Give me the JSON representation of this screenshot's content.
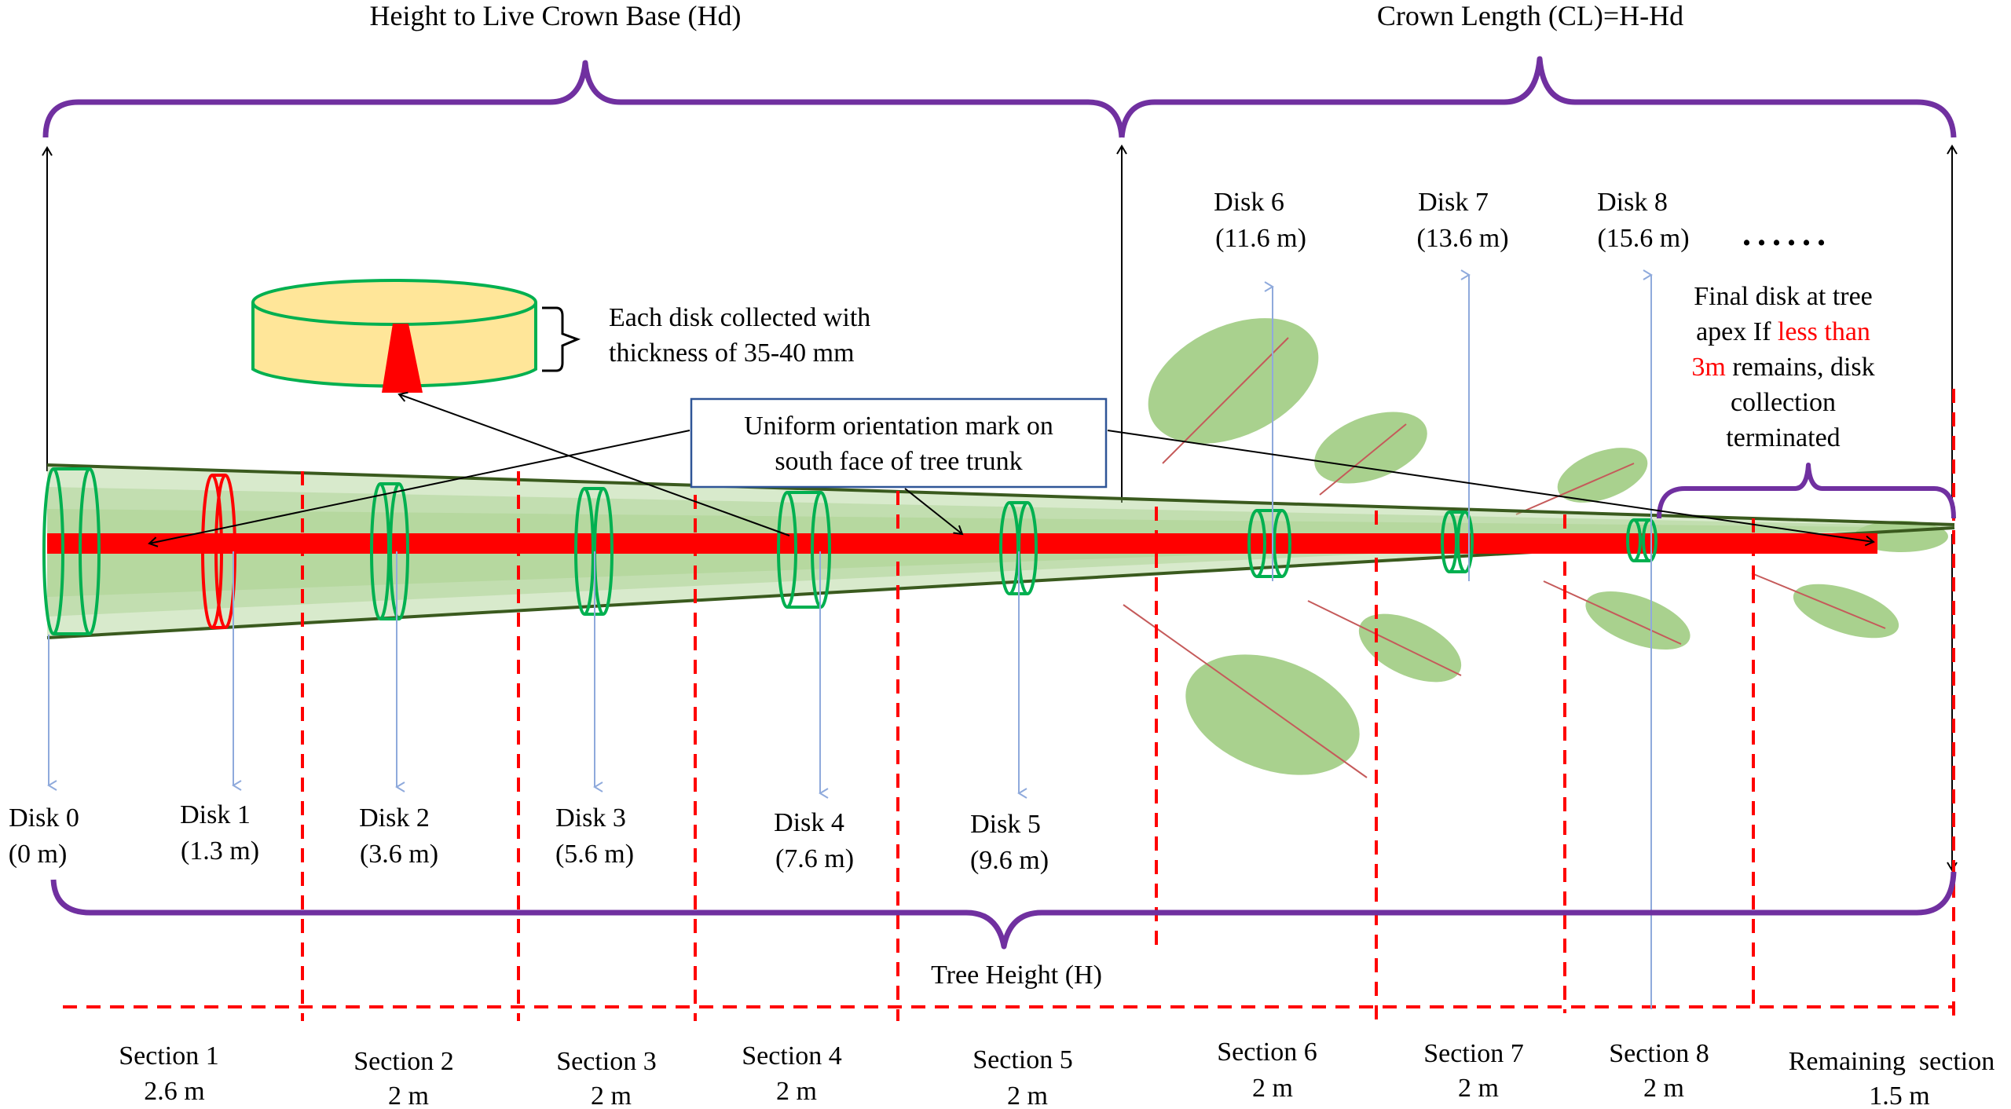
{
  "headers": {
    "hd": "Height to Live Crown Base (Hd)",
    "cl": "Crown Length (CL)=H-Hd",
    "tree_height": "Tree Height (H)"
  },
  "disk_callout": {
    "line1": "Each disk collected with",
    "line2": "thickness of 35-40 mm"
  },
  "orientation_box": {
    "line1": "Uniform orientation mark on",
    "line2": "south face of tree trunk"
  },
  "final_note": {
    "line1": "Final disk at tree",
    "line2_a": "apex If ",
    "line2_b": "less than",
    "line3_a": "3m",
    "line3_b": " remains, disk",
    "line4": "collection",
    "line5": "terminated",
    "highlight_color": "#ff0000"
  },
  "ellipsis": "......",
  "disks": [
    {
      "name": "Disk 0",
      "height": "(0 m)"
    },
    {
      "name": "Disk 1",
      "height": "(1.3 m)"
    },
    {
      "name": "Disk 2",
      "height": "(3.6 m)"
    },
    {
      "name": "Disk 3",
      "height": "(5.6 m)"
    },
    {
      "name": "Disk 4",
      "height": "(7.6 m)"
    },
    {
      "name": "Disk 5",
      "height": "(9.6 m)"
    },
    {
      "name": "Disk 6",
      "height": "(11.6 m)"
    },
    {
      "name": "Disk 7",
      "height": "(13.6 m)"
    },
    {
      "name": "Disk 8",
      "height": "(15.6 m)"
    }
  ],
  "sections": [
    {
      "name": "Section 1",
      "length": "2.6 m"
    },
    {
      "name": "Section 2",
      "length": "2 m"
    },
    {
      "name": "Section 3",
      "length": "2 m"
    },
    {
      "name": "Section 4",
      "length": "2 m"
    },
    {
      "name": "Section 5",
      "length": "2 m"
    },
    {
      "name": "Section 6",
      "length": "2 m"
    },
    {
      "name": "Section 7",
      "length": "2 m"
    },
    {
      "name": "Section 8",
      "length": "2 m"
    },
    {
      "name": "Remaining  section",
      "length": "1.5 m"
    }
  ],
  "colors": {
    "brace": "#7030a0",
    "disk_outline": "#00b050",
    "disk1_outline": "#ff0000",
    "trunk_mark": "#ff0000",
    "section_line": "#ff0000",
    "leaf": "#a9d18e",
    "disk_arrow": "#8faadc",
    "callout_box": "#2f5597",
    "disk_face": "#ffe699",
    "trunk_outline": "#3a5a1e"
  }
}
